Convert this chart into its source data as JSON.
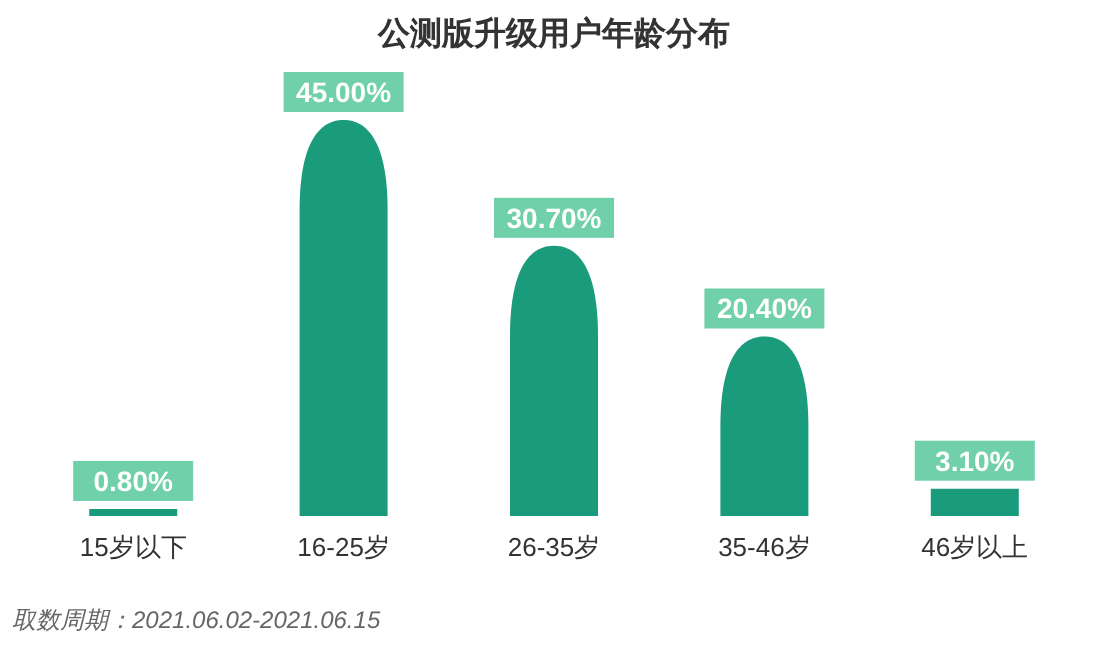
{
  "chart_data": {
    "type": "bar",
    "title": "公测版升级用户年龄分布",
    "categories": [
      "15岁以下",
      "16-25岁",
      "26-35岁",
      "35-46岁",
      "46岁以上"
    ],
    "values": [
      0.8,
      45,
      30.7,
      20.4,
      3.1
    ],
    "value_labels": [
      "0.80%",
      "45.00%",
      "30.70%",
      "20.40%",
      "3.10%"
    ],
    "color": "#1a9b7b",
    "annotations": [
      "取数周期：2021.06.02-2021.06.15"
    ]
  }
}
